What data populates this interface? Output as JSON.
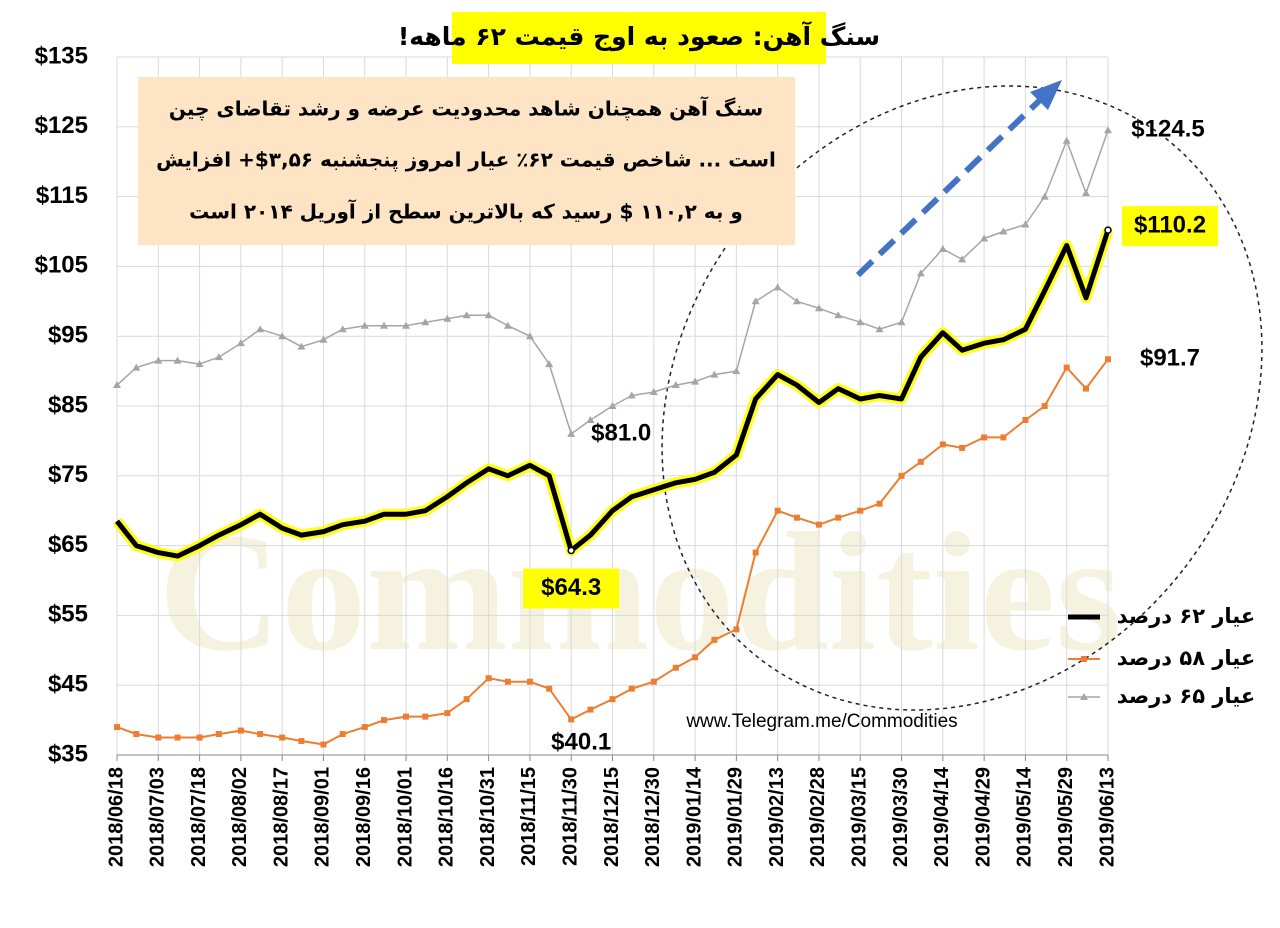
{
  "chart_data": {
    "type": "line",
    "title": "سنگ آهن: صعود به اوج قیمت ۶۲ ماهه!",
    "annotation_lines": [
      "سنگ آهن همچنان شاهد محدودیت عرضه و رشد تقاضای چین",
      "است ... شاخص قیمت ۶۲٪ عیار امروز پنجشنبه ۳,۵۶$+ افزایش",
      "و به ۱۱۰,۲ $ رسید که بالاترین سطح از آوریل ۲۰۱۴ است"
    ],
    "source": "www.Telegram.me/Commodities",
    "watermark": "Commodities",
    "x": [
      "2018/06/18",
      "2018/06/25",
      "2018/07/03",
      "2018/07/10",
      "2018/07/18",
      "2018/07/25",
      "2018/08/02",
      "2018/08/09",
      "2018/08/17",
      "2018/08/24",
      "2018/09/01",
      "2018/09/08",
      "2018/09/16",
      "2018/09/23",
      "2018/10/01",
      "2018/10/08",
      "2018/10/16",
      "2018/10/23",
      "2018/10/31",
      "2018/11/07",
      "2018/11/15",
      "2018/11/22",
      "2018/11/30",
      "2018/12/07",
      "2018/12/15",
      "2018/12/22",
      "2018/12/30",
      "2019/01/07",
      "2019/01/14",
      "2019/01/21",
      "2019/01/29",
      "2019/02/05",
      "2019/02/13",
      "2019/02/20",
      "2019/02/28",
      "2019/03/07",
      "2019/03/15",
      "2019/03/22",
      "2019/03/30",
      "2019/04/06",
      "2019/04/14",
      "2019/04/21",
      "2019/04/29",
      "2019/05/06",
      "2019/05/14",
      "2019/05/21",
      "2019/05/29",
      "2019/06/05",
      "2019/06/13"
    ],
    "xticks": [
      "2018/06/18",
      "2018/07/03",
      "2018/07/18",
      "2018/08/02",
      "2018/08/17",
      "2018/09/01",
      "2018/09/16",
      "2018/10/01",
      "2018/10/16",
      "2018/10/31",
      "2018/11/15",
      "2018/11/30",
      "2018/12/15",
      "2018/12/30",
      "2019/01/14",
      "2019/01/29",
      "2019/02/13",
      "2019/02/28",
      "2019/03/15",
      "2019/03/30",
      "2019/04/14",
      "2019/04/29",
      "2019/05/14",
      "2019/05/29",
      "2019/06/13"
    ],
    "ylim": [
      35,
      135
    ],
    "yticks": [
      {
        "value": 35,
        "label": "$35"
      },
      {
        "value": 45,
        "label": "$45"
      },
      {
        "value": 55,
        "label": "$55"
      },
      {
        "value": 65,
        "label": "$65"
      },
      {
        "value": 75,
        "label": "$75"
      },
      {
        "value": 85,
        "label": "$85"
      },
      {
        "value": 95,
        "label": "$95"
      },
      {
        "value": 105,
        "label": "$105"
      },
      {
        "value": 115,
        "label": "$115"
      },
      {
        "value": 125,
        "label": "$125"
      },
      {
        "value": 135,
        "label": "$135"
      }
    ],
    "grid": true,
    "legend": "lower right",
    "series": [
      {
        "name": "عیار ۶۲ درصد",
        "color": "#000000",
        "values": [
          68.5,
          65,
          64,
          63.5,
          65,
          66.5,
          68,
          69.5,
          67.5,
          66.5,
          67,
          68,
          68.5,
          69.5,
          69.5,
          70,
          72,
          74,
          76,
          75,
          76.5,
          75,
          64.3,
          66.5,
          70,
          72,
          73,
          74,
          74.5,
          75.5,
          78,
          86,
          89.5,
          88,
          85.5,
          87.5,
          86,
          86.5,
          86,
          92,
          95.5,
          93,
          94,
          94.5,
          96,
          101.5,
          108,
          100.5,
          110.2
        ],
        "value_labels": [
          null,
          null,
          null,
          null,
          null,
          null,
          null,
          null,
          null,
          null,
          null,
          null,
          null,
          null,
          null,
          null,
          null,
          null,
          null,
          null,
          null,
          null,
          "$64.3",
          null,
          null,
          null,
          null,
          null,
          null,
          null,
          null,
          null,
          null,
          null,
          null,
          null,
          null,
          null,
          null,
          null,
          null,
          null,
          null,
          null,
          null,
          null,
          null,
          null,
          "$110.2"
        ]
      },
      {
        "name": "عیار ۵۸ درصد",
        "color": "#ed7d31",
        "values": [
          39,
          38,
          37.5,
          37.5,
          37.5,
          38,
          38.5,
          38,
          37.5,
          37,
          36.5,
          38,
          39,
          40,
          40.5,
          40.5,
          41,
          43,
          46,
          45.5,
          45.5,
          44.5,
          40.1,
          41.5,
          43,
          44.5,
          45.5,
          47.5,
          49,
          51.5,
          53,
          64,
          70,
          69,
          68,
          69,
          70,
          71,
          75,
          77,
          79.5,
          79,
          80.5,
          80.5,
          83,
          85,
          90.5,
          87.5,
          91.7
        ],
        "value_labels": [
          null,
          null,
          null,
          null,
          null,
          null,
          null,
          null,
          null,
          null,
          null,
          null,
          null,
          null,
          null,
          null,
          null,
          null,
          null,
          null,
          null,
          null,
          "$40.1",
          null,
          null,
          null,
          null,
          null,
          null,
          null,
          null,
          null,
          null,
          null,
          null,
          null,
          null,
          null,
          null,
          null,
          null,
          null,
          null,
          null,
          null,
          null,
          null,
          null,
          "$91.7"
        ]
      },
      {
        "name": "عیار ۶۵ درصد",
        "color": "#a5a5a5",
        "values": [
          88,
          90.5,
          91.5,
          91.5,
          91,
          92,
          94,
          96,
          95,
          93.5,
          94.5,
          96,
          96.5,
          96.5,
          96.5,
          97,
          97.5,
          98,
          98,
          96.5,
          95,
          91,
          81,
          83,
          85,
          86.5,
          87,
          88,
          88.5,
          89.5,
          90,
          100,
          102,
          100,
          99,
          98,
          97,
          96,
          97,
          104,
          107.5,
          106,
          109,
          110,
          111,
          115,
          123,
          115.5,
          124.5
        ],
        "value_labels": [
          null,
          null,
          null,
          null,
          null,
          null,
          null,
          null,
          null,
          null,
          null,
          null,
          null,
          null,
          null,
          null,
          null,
          null,
          null,
          null,
          null,
          null,
          "$81.0",
          null,
          null,
          null,
          null,
          null,
          null,
          null,
          null,
          null,
          null,
          null,
          null,
          null,
          null,
          null,
          null,
          null,
          null,
          null,
          null,
          null,
          null,
          null,
          null,
          null,
          "$124.5"
        ]
      }
    ]
  }
}
